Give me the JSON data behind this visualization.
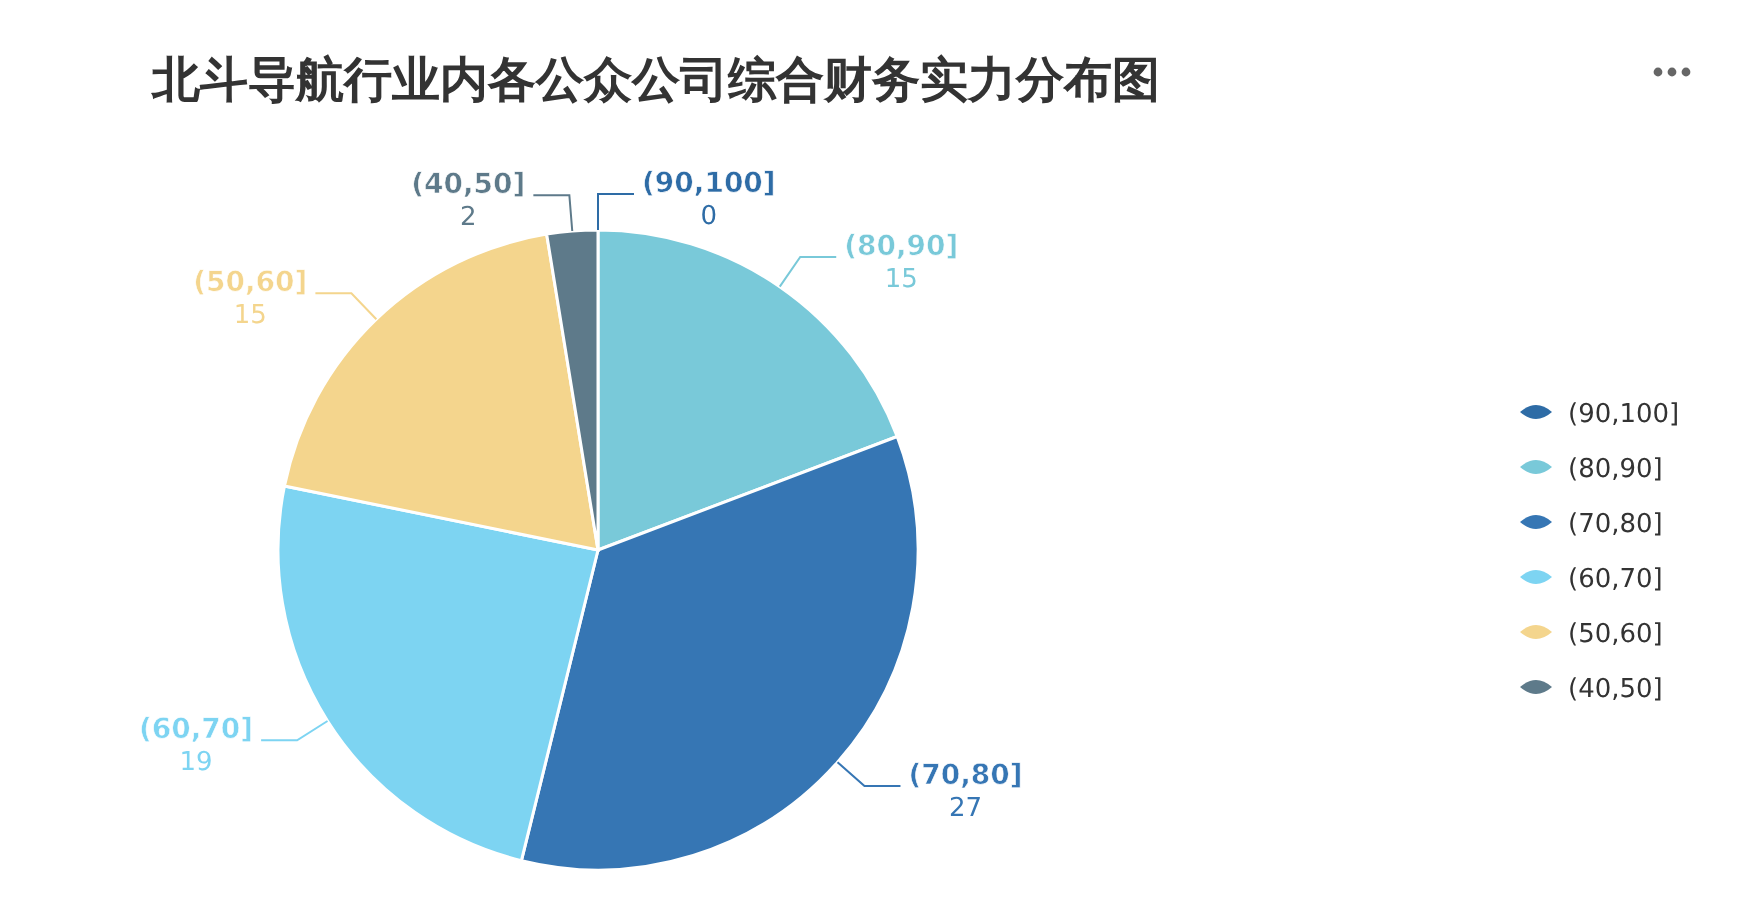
{
  "chart_data": {
    "type": "pie",
    "title": "北斗导航行业内各公众公司综合财务实力分布图",
    "categories": [
      "(90,100]",
      "(80,90]",
      "(70,80]",
      "(60,70]",
      "(50,60]",
      "(40,50]"
    ],
    "values": [
      0,
      15,
      27,
      19,
      15,
      2
    ],
    "colors": [
      "#2e6ca6",
      "#79c9d9",
      "#3676b4",
      "#7dd4f2",
      "#f4d58d",
      "#5e7a8a"
    ],
    "legend": "right",
    "value_labels": [
      "0",
      "15",
      "27",
      "19",
      "15",
      "2"
    ]
  }
}
